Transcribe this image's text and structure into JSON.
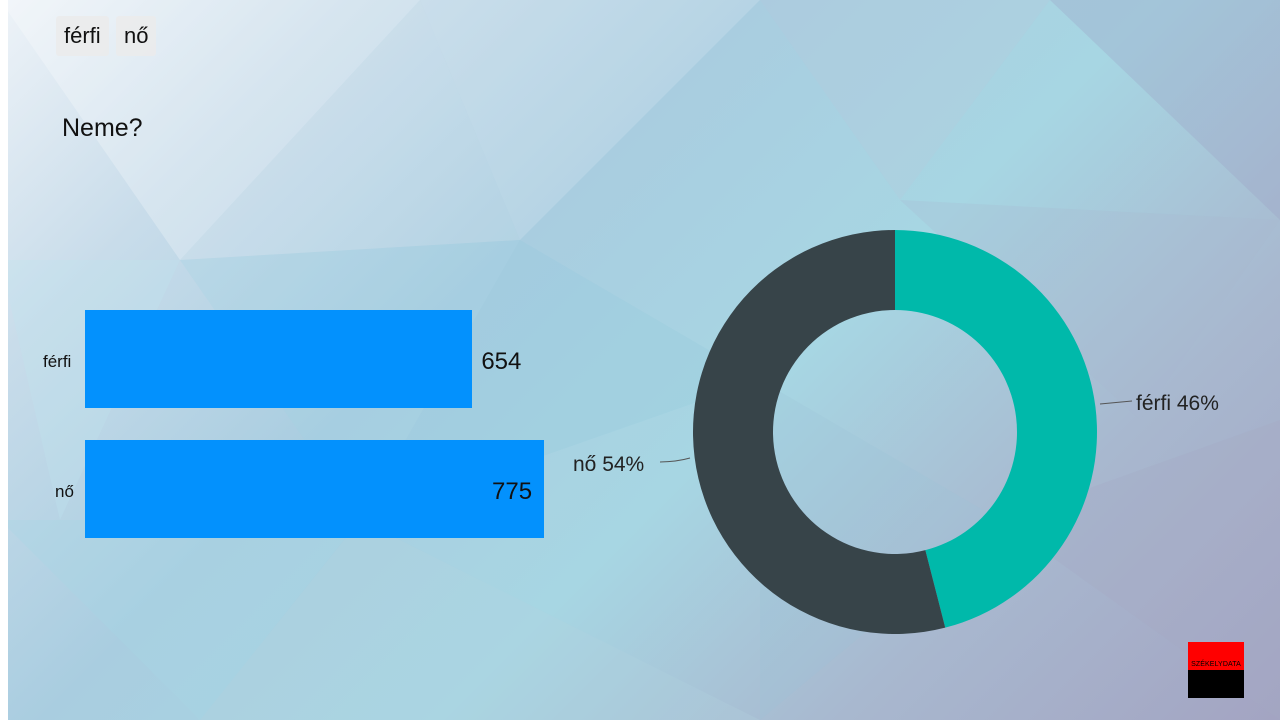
{
  "tabs": [
    {
      "label": "férfi"
    },
    {
      "label": "nő"
    }
  ],
  "question": "Neme?",
  "logo_text": "SZÉKELYDATA",
  "chart_data": [
    {
      "type": "bar",
      "orientation": "horizontal",
      "categories": [
        "férfi",
        "nő"
      ],
      "values": [
        654,
        775
      ],
      "value_labels": [
        "654",
        "775"
      ],
      "colors": [
        "#0391fd"
      ]
    },
    {
      "type": "pie",
      "donut": true,
      "slices": [
        {
          "label": "férfi",
          "value": 46,
          "label_text": "férfi 46%",
          "color": "#00b9aa"
        },
        {
          "label": "nő",
          "value": 54,
          "label_text": "nő 54%",
          "color": "#374449"
        }
      ]
    }
  ]
}
